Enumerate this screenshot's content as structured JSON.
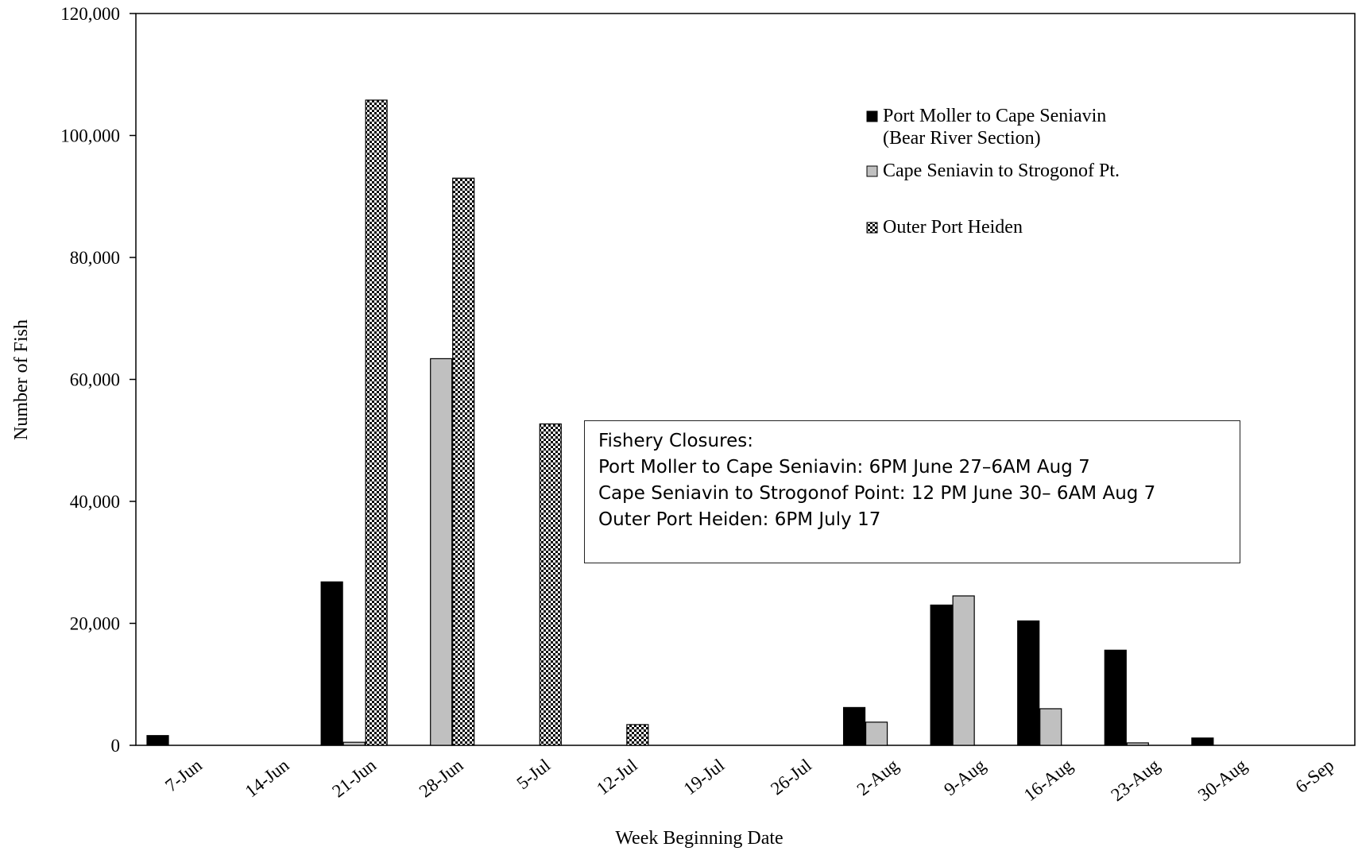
{
  "chart_data": {
    "type": "bar",
    "title": "",
    "xlabel": "Week Beginning Date",
    "ylabel": "Number of Fish",
    "ylim": [
      0,
      120000
    ],
    "yticks": [
      "0",
      "20,000",
      "40,000",
      "60,000",
      "80,000",
      "100,000",
      "120,000"
    ],
    "ytick_values": [
      0,
      20000,
      40000,
      60000,
      80000,
      100000,
      120000
    ],
    "categories": [
      "7-Jun",
      "14-Jun",
      "21-Jun",
      "28-Jun",
      "5-Jul",
      "12-Jul",
      "19-Jul",
      "26-Jul",
      "2-Aug",
      "9-Aug",
      "16-Aug",
      "23-Aug",
      "30-Aug",
      "6-Sep"
    ],
    "grid": false,
    "legend_position": "top-right",
    "series": [
      {
        "name": "Port Moller to Cape Seniavin",
        "name_line2": "(Bear River Section)",
        "color": "#000000",
        "pattern": "solid",
        "values": [
          1600,
          0,
          26800,
          0,
          0,
          0,
          0,
          0,
          6200,
          23000,
          20400,
          15600,
          1200,
          0
        ]
      },
      {
        "name": "Cape Seniavin to Strogonof Pt.",
        "color": "#c0c0c0",
        "pattern": "solid",
        "values": [
          0,
          0,
          500,
          63400,
          0,
          0,
          0,
          0,
          3800,
          24500,
          6000,
          400,
          0,
          0
        ]
      },
      {
        "name": "Outer Port Heiden",
        "color": "#000000",
        "pattern": "checker",
        "values": [
          0,
          0,
          105800,
          93000,
          52700,
          3400,
          0,
          0,
          0,
          0,
          0,
          0,
          0,
          0
        ]
      }
    ],
    "annotation": {
      "lines": [
        "Fishery Closures:",
        "Port Moller to Cape Seniavin: 6PM June 27–6AM Aug 7",
        "Cape Seniavin to Strogonof Point: 12 PM June 30– 6AM Aug 7",
        "Outer Port Heiden: 6PM July 17"
      ]
    }
  }
}
